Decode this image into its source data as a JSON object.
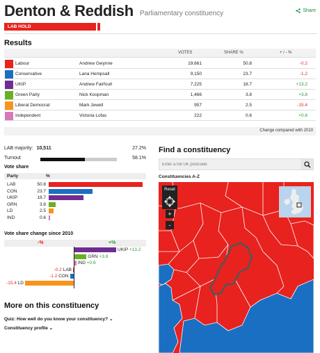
{
  "header": {
    "title": "Denton & Reddish",
    "subtitle": "Parliamentary constituency",
    "share_label": "Share",
    "hold_label": "LAB HOLD"
  },
  "results": {
    "heading": "Results",
    "columns": {
      "votes": "VOTES",
      "share": "SHARE %",
      "change": "+ / - %"
    },
    "rows": [
      {
        "party": "Labour",
        "candidate": "Andrew Gwynne",
        "votes": "19,661",
        "share": "50.8",
        "change": "-0.2",
        "color": "#e8221e",
        "change_color": "#e8221e"
      },
      {
        "party": "Conservative",
        "candidate": "Lana Hempsall",
        "votes": "9,150",
        "share": "23.7",
        "change": "-1.2",
        "color": "#1b6fc2",
        "change_color": "#e8221e"
      },
      {
        "party": "UKIP",
        "candidate": "Andrew Fairfoull",
        "votes": "7,225",
        "share": "18.7",
        "change": "+13.2",
        "color": "#6f2d91",
        "change_color": "#2a9a2a"
      },
      {
        "party": "Green Party",
        "candidate": "Nick Koopman",
        "votes": "1,466",
        "share": "3.8",
        "change": "+3.8",
        "color": "#6ab023",
        "change_color": "#2a9a2a"
      },
      {
        "party": "Liberal Democrat",
        "candidate": "Mark Jewell",
        "votes": "957",
        "share": "2.5",
        "change": "-15.4",
        "color": "#f7941d",
        "change_color": "#e8221e"
      },
      {
        "party": "Independent",
        "candidate": "Victoria Lofas",
        "votes": "222",
        "share": "0.6",
        "change": "+0.6",
        "color": "#d679b8",
        "change_color": "#2a9a2a"
      }
    ],
    "change_note": "Change compared with 2010"
  },
  "stats": {
    "majority_label": "LAB majority:",
    "majority_value": "10,511",
    "majority_pct": "27.2%",
    "turnout_label": "Turnout",
    "turnout_pct": "58.1%",
    "turnout_fraction": 0.581
  },
  "vote_share": {
    "heading": "Vote share",
    "col_party": "Party",
    "col_pct": "%",
    "rows": [
      {
        "party": "LAB",
        "value": "50.8",
        "v": 50.8,
        "color": "#e8221e"
      },
      {
        "party": "CON",
        "value": "23.7",
        "v": 23.7,
        "color": "#1b6fc2"
      },
      {
        "party": "UKIP",
        "value": "18.7",
        "v": 18.7,
        "color": "#6f2d91"
      },
      {
        "party": "GRN",
        "value": "3.8",
        "v": 3.8,
        "color": "#6ab023"
      },
      {
        "party": "LD",
        "value": "2.5",
        "v": 2.5,
        "color": "#f7941d"
      },
      {
        "party": "IND",
        "value": "0.6",
        "v": 0.6,
        "color": "#d679b8"
      }
    ]
  },
  "vote_change": {
    "heading": "Vote share change since 2010",
    "neg_label": "-%",
    "pos_label": "+%",
    "rows": [
      {
        "party": "UKIP",
        "value": "+13.2",
        "v": 13.2,
        "color": "#6f2d91"
      },
      {
        "party": "GRN",
        "value": "+3.8",
        "v": 3.8,
        "color": "#6ab023"
      },
      {
        "party": "IND",
        "value": "+0.6",
        "v": 0.6,
        "color": "#d679b8"
      },
      {
        "party": "LAB",
        "value": "-0.2",
        "v": -0.2,
        "color": "#e8221e"
      },
      {
        "party": "CON",
        "value": "-1.2",
        "v": -1.2,
        "color": "#1b6fc2"
      },
      {
        "party": "LD",
        "value": "-15.4",
        "v": -15.4,
        "color": "#f7941d"
      }
    ]
  },
  "more": {
    "heading": "More on this constituency",
    "quiz": "Quiz: How well do you know your constituency?",
    "profile": "Constituency profile"
  },
  "find": {
    "heading": "Find a constituency",
    "placeholder": "Enter a full UK postcode",
    "az_label": "Constituencies A-Z",
    "reset_label": "Reset",
    "zoom_in": "+",
    "zoom_out": "-"
  }
}
